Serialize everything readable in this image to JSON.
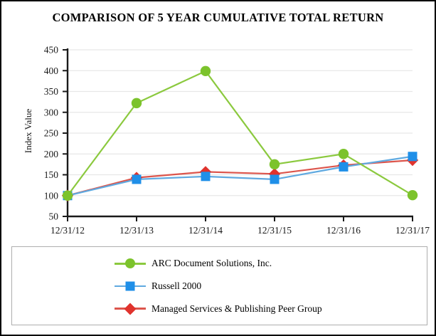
{
  "frame": {
    "background": "#FFFFFF",
    "border_color": "#000000"
  },
  "chart_data": {
    "type": "line",
    "title": "COMPARISON OF 5 YEAR CUMULATIVE TOTAL RETURN",
    "xlabel": "",
    "ylabel": "Index Value",
    "categories": [
      "12/31/12",
      "12/31/13",
      "12/31/14",
      "12/31/15",
      "12/31/16",
      "12/31/17"
    ],
    "ylim": [
      50,
      450
    ],
    "ytick_step": 50,
    "grid": true,
    "grid_color": "#E7E7E7",
    "axis_color": "#1A1A1A",
    "legend_position": "bottom-box",
    "series": [
      {
        "name": "ARC Document Solutions, Inc.",
        "marker": "circle",
        "color": "#7CC32C",
        "line_color": "#8BC93E",
        "values": [
          100,
          322,
          399,
          175,
          200,
          101
        ]
      },
      {
        "name": "Russell 2000",
        "marker": "square",
        "color": "#1F8FE8",
        "line_color": "#5FA9E0",
        "values": [
          100,
          139,
          146,
          139,
          169,
          194
        ]
      },
      {
        "name": "Managed Services & Publishing Peer Group",
        "marker": "diamond",
        "color": "#E0332D",
        "line_color": "#DC554C",
        "values": [
          100,
          143,
          157,
          152,
          173,
          185
        ]
      }
    ]
  }
}
